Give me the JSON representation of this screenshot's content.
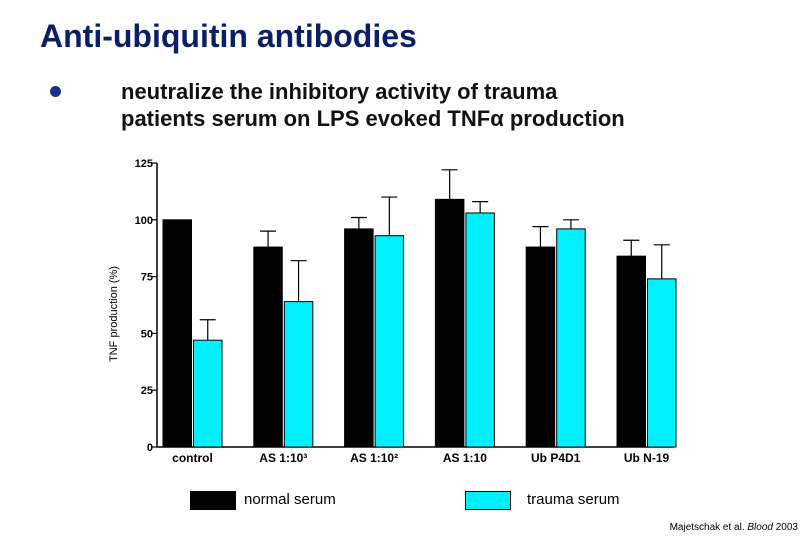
{
  "slide": {
    "title": "Anti-ubiquitin antibodies",
    "subtitle_line1": "neutralize the inhibitory activity of trauma",
    "subtitle_line2": "patients serum on LPS evoked TNFα production",
    "citation_prefix": "Majetschak et al. ",
    "citation_journal": "Blood",
    "citation_year": " 2003"
  },
  "colors": {
    "normal": "#000000",
    "trauma": "#00f0ff"
  },
  "chart_data": {
    "type": "bar",
    "ylabel": "TNF production (%)",
    "ylim": [
      0,
      125
    ],
    "yticks": [
      0,
      25,
      50,
      75,
      100,
      125
    ],
    "categories": [
      "control",
      "AS 1:10³",
      "AS 1:10²",
      "AS 1:10",
      "Ub P4D1",
      "Ub N-19"
    ],
    "series": [
      {
        "name": "normal serum",
        "values": [
          100,
          88,
          96,
          109,
          88,
          84
        ],
        "errors": [
          0,
          7,
          5,
          13,
          9,
          7
        ]
      },
      {
        "name": "trauma serum",
        "values": [
          47,
          64,
          93,
          103,
          96,
          74
        ],
        "errors": [
          9,
          18,
          17,
          5,
          4,
          15
        ]
      }
    ],
    "legend": "bottom"
  }
}
